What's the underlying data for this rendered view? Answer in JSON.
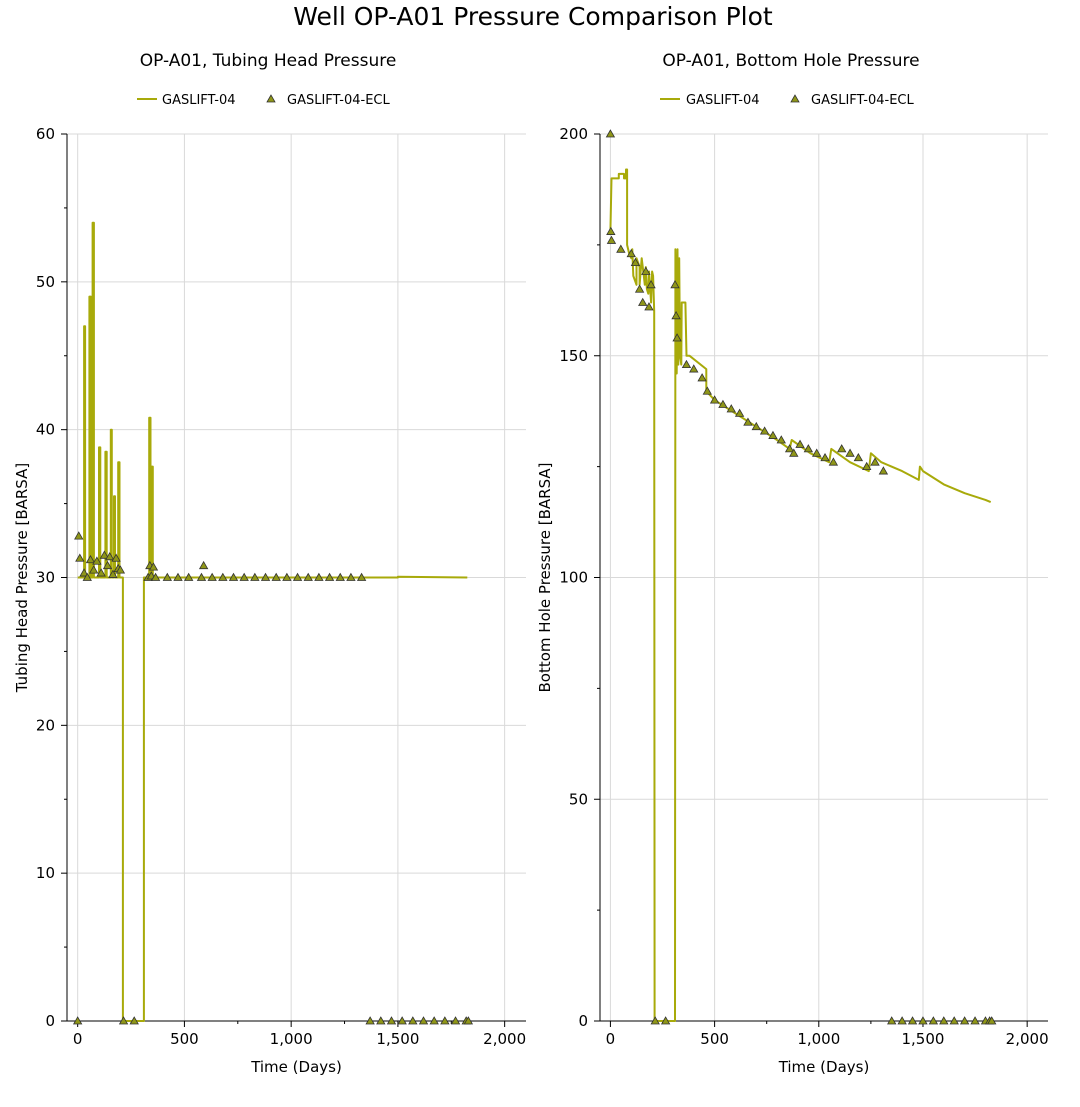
{
  "title": "Well OP-A01 Pressure Comparison Plot",
  "colors": {
    "line": "#a8aa0a",
    "marker_fill": "#8f9618",
    "marker_stroke": "#333333",
    "grid": "#d9d9d9"
  },
  "chart_data": [
    {
      "type": "line",
      "title": "OP-A01, Tubing Head Pressure",
      "xlabel": "Time (Days)",
      "ylabel": "Tubing Head Pressure [BARSA]",
      "xlim": [
        -50,
        2100
      ],
      "ylim": [
        0,
        60
      ],
      "xticks": [
        0,
        500,
        1000,
        1500,
        2000
      ],
      "xtick_labels": [
        "0",
        "500",
        "1,000",
        "1,500",
        "2,000"
      ],
      "yticks": [
        0,
        10,
        20,
        30,
        40,
        50,
        60
      ],
      "ytick_labels": [
        "0",
        "10",
        "20",
        "30",
        "40",
        "50",
        "60"
      ],
      "grid": true,
      "legend": "top",
      "series": [
        {
          "name": "GASLIFT-04",
          "kind": "line",
          "points": [
            [
              0,
              30
            ],
            [
              30,
              30
            ],
            [
              30,
              47
            ],
            [
              35,
              47
            ],
            [
              35,
              30
            ],
            [
              55,
              30
            ],
            [
              55,
              49
            ],
            [
              62,
              49
            ],
            [
              62,
              30
            ],
            [
              70,
              30
            ],
            [
              70,
              54
            ],
            [
              76,
              54
            ],
            [
              76,
              30
            ],
            [
              100,
              30
            ],
            [
              100,
              38.8
            ],
            [
              106,
              38.8
            ],
            [
              106,
              30
            ],
            [
              130,
              30
            ],
            [
              130,
              38.5
            ],
            [
              136,
              38.5
            ],
            [
              136,
              30
            ],
            [
              155,
              30
            ],
            [
              155,
              40
            ],
            [
              160,
              40
            ],
            [
              160,
              30
            ],
            [
              170,
              30
            ],
            [
              170,
              35.5
            ],
            [
              175,
              35.5
            ],
            [
              175,
              30
            ],
            [
              190,
              30
            ],
            [
              190,
              37.8
            ],
            [
              196,
              37.8
            ],
            [
              196,
              30
            ],
            [
              212,
              30
            ],
            [
              212,
              0
            ],
            [
              310,
              0
            ],
            [
              310,
              30
            ],
            [
              335,
              30
            ],
            [
              335,
              40.8
            ],
            [
              341,
              40.8
            ],
            [
              341,
              30
            ],
            [
              346,
              30
            ],
            [
              346,
              37.5
            ],
            [
              352,
              37.5
            ],
            [
              352,
              30
            ],
            [
              1500,
              30
            ],
            [
              1500,
              30.05
            ],
            [
              1825,
              30
            ]
          ]
        },
        {
          "name": "GASLIFT-04-ECL",
          "kind": "marker",
          "x": [
            0,
            5,
            10,
            30,
            45,
            60,
            75,
            90,
            110,
            125,
            140,
            150,
            165,
            180,
            190,
            200,
            215,
            265,
            330,
            338,
            345,
            355,
            365,
            420,
            470,
            520,
            580,
            590,
            630,
            680,
            730,
            780,
            830,
            880,
            930,
            980,
            1030,
            1080,
            1130,
            1180,
            1230,
            1280,
            1330,
            1370,
            1420,
            1470,
            1520,
            1570,
            1620,
            1670,
            1720,
            1770,
            1820,
            1830
          ],
          "y": [
            0,
            32.8,
            31.3,
            30.3,
            30,
            31.2,
            30.5,
            31.1,
            30.3,
            31.5,
            30.8,
            31.4,
            30.2,
            31.3,
            30.6,
            30.5,
            0,
            0,
            30,
            30.8,
            30.1,
            30.7,
            30,
            30,
            30,
            30,
            30,
            30.8,
            30,
            30,
            30,
            30,
            30,
            30,
            30,
            30,
            30,
            30,
            30,
            30,
            30,
            30,
            30,
            0,
            0,
            0,
            0,
            0,
            0,
            0,
            0,
            0,
            0,
            0
          ]
        }
      ]
    },
    {
      "type": "line",
      "title": "OP-A01, Bottom Hole Pressure",
      "xlabel": "Time (Days)",
      "ylabel": "Bottom Hole Pressure [BARSA]",
      "xlim": [
        -50,
        2100
      ],
      "ylim": [
        0,
        200
      ],
      "xticks": [
        0,
        500,
        1000,
        1500,
        2000
      ],
      "xtick_labels": [
        "0",
        "500",
        "1,000",
        "1,500",
        "2,000"
      ],
      "yticks": [
        0,
        50,
        100,
        150,
        200
      ],
      "ytick_labels": [
        "0",
        "50",
        "100",
        "150",
        "200"
      ],
      "grid": true,
      "legend": "top",
      "series": [
        {
          "name": "GASLIFT-04",
          "kind": "line",
          "points": [
            [
              0,
              178
            ],
            [
              5,
              190
            ],
            [
              40,
              190
            ],
            [
              40,
              191
            ],
            [
              65,
              191
            ],
            [
              65,
              190
            ],
            [
              75,
              190
            ],
            [
              75,
              192
            ],
            [
              80,
              192
            ],
            [
              80,
              175
            ],
            [
              90,
              173
            ],
            [
              100,
              172
            ],
            [
              105,
              174
            ],
            [
              110,
              168
            ],
            [
              125,
              166
            ],
            [
              125,
              172
            ],
            [
              140,
              170
            ],
            [
              140,
              166
            ],
            [
              150,
              172
            ],
            [
              160,
              168
            ],
            [
              165,
              166
            ],
            [
              170,
              170
            ],
            [
              175,
              165
            ],
            [
              182,
              164
            ],
            [
              185,
              169
            ],
            [
              195,
              162
            ],
            [
              200,
              169
            ],
            [
              205,
              168
            ],
            [
              210,
              160
            ],
            [
              212,
              0
            ],
            [
              310,
              0
            ],
            [
              312,
              174
            ],
            [
              318,
              146
            ],
            [
              322,
              174
            ],
            [
              326,
              148
            ],
            [
              330,
              172
            ],
            [
              334,
              150
            ],
            [
              340,
              148
            ],
            [
              342,
              162
            ],
            [
              360,
              162
            ],
            [
              365,
              150
            ],
            [
              380,
              150
            ],
            [
              460,
              147
            ],
            [
              460,
              142
            ],
            [
              500,
              140
            ],
            [
              600,
              137
            ],
            [
              700,
              134
            ],
            [
              800,
              131
            ],
            [
              860,
              129
            ],
            [
              870,
              131
            ],
            [
              960,
              128
            ],
            [
              1050,
              126
            ],
            [
              1060,
              129
            ],
            [
              1150,
              126
            ],
            [
              1240,
              124
            ],
            [
              1250,
              128
            ],
            [
              1300,
              126
            ],
            [
              1400,
              124
            ],
            [
              1480,
              122
            ],
            [
              1485,
              125
            ],
            [
              1500,
              124
            ],
            [
              1600,
              121
            ],
            [
              1700,
              119
            ],
            [
              1800,
              117.5
            ],
            [
              1825,
              117
            ]
          ]
        },
        {
          "name": "GASLIFT-04-ECL",
          "kind": "marker",
          "x": [
            0,
            2,
            5,
            50,
            100,
            120,
            140,
            155,
            170,
            185,
            195,
            215,
            265,
            310,
            315,
            320,
            365,
            400,
            440,
            465,
            500,
            540,
            580,
            620,
            660,
            700,
            740,
            780,
            820,
            860,
            880,
            910,
            950,
            990,
            1030,
            1070,
            1110,
            1150,
            1190,
            1230,
            1270,
            1310,
            1350,
            1400,
            1450,
            1500,
            1550,
            1600,
            1650,
            1700,
            1750,
            1800,
            1820,
            1830
          ],
          "y": [
            200,
            178,
            176,
            174,
            173,
            171,
            165,
            162,
            169,
            161,
            166,
            0,
            0,
            166,
            159,
            154,
            148,
            147,
            145,
            142,
            140,
            139,
            138,
            137,
            135,
            134,
            133,
            132,
            131,
            129,
            128,
            130,
            129,
            128,
            127,
            126,
            129,
            128,
            127,
            125,
            126,
            124,
            0,
            0,
            0,
            0,
            0,
            0,
            0,
            0,
            0,
            0,
            0,
            0
          ]
        }
      ]
    }
  ]
}
